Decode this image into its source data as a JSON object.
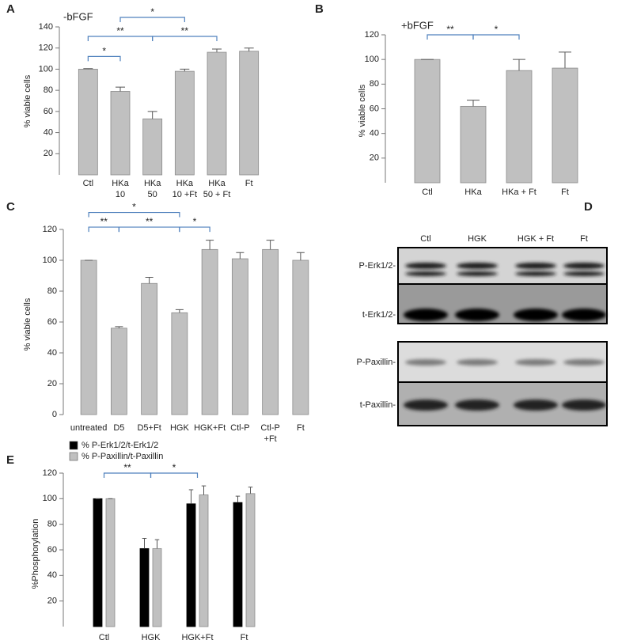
{
  "chart_data": [
    {
      "type": "bar",
      "panel": "A",
      "title": "-bFGF",
      "ylabel": "% viable cells",
      "categories": [
        [
          "Ctl"
        ],
        [
          "HKa",
          "10"
        ],
        [
          "HKa",
          "50"
        ],
        [
          "HKa",
          "10 +Ft"
        ],
        [
          "HKa",
          "50 + Ft"
        ],
        [
          "Ft"
        ]
      ],
      "values": [
        100,
        79,
        53,
        98,
        116,
        117
      ],
      "errors": [
        0.5,
        4,
        7,
        2,
        3,
        3
      ],
      "color": "#c0c0c0",
      "ylim": [
        0,
        140
      ],
      "yticks": [
        20,
        40,
        60,
        80,
        100,
        120,
        140
      ],
      "annotations": [
        "*",
        "**",
        "*",
        "**"
      ]
    },
    {
      "type": "bar",
      "panel": "B",
      "title": "+bFGF",
      "ylabel": "% viable cells",
      "categories": [
        "Ctl",
        "HKa",
        "HKa + Ft",
        "Ft"
      ],
      "values": [
        100,
        62,
        91,
        93
      ],
      "errors": [
        0,
        5,
        9,
        13
      ],
      "color": "#c0c0c0",
      "ylim": [
        0,
        120
      ],
      "yticks": [
        20,
        40,
        60,
        80,
        100,
        120
      ],
      "annotations": [
        "**",
        "*"
      ]
    },
    {
      "type": "bar",
      "panel": "C",
      "ylabel": "% viable cells",
      "categories": [
        [
          "untreated"
        ],
        [
          "D5"
        ],
        [
          "D5+Ft"
        ],
        [
          "HGK"
        ],
        [
          "HGK+Ft"
        ],
        [
          "Ctl-P"
        ],
        [
          "Ctl-P",
          "+Ft"
        ],
        [
          "Ft"
        ]
      ],
      "values": [
        100,
        56,
        85,
        66,
        107,
        101,
        107,
        100
      ],
      "errors": [
        0,
        1,
        4,
        2,
        6,
        4,
        6,
        5
      ],
      "color": "#c0c0c0",
      "ylim": [
        0,
        120
      ],
      "yticks": [
        0,
        20,
        40,
        60,
        80,
        100,
        120
      ],
      "annotations": [
        "*",
        "**",
        "**",
        "*"
      ]
    },
    {
      "type": "bar",
      "panel": "E",
      "ylabel": "%Phosphorylation",
      "categories": [
        "Ctl",
        "HGK",
        "HGK+Ft",
        "Ft"
      ],
      "series": [
        {
          "name": "% P-Erk1/2/t-Erk1/2",
          "color": "#000000",
          "values": [
            100,
            61,
            96,
            97
          ],
          "errors": [
            0,
            8,
            11,
            5
          ]
        },
        {
          "name": "% P-Paxillin/t-Paxillin",
          "color": "#c0c0c0",
          "values": [
            100,
            61,
            103,
            104
          ],
          "errors": [
            0,
            7,
            7,
            5
          ]
        }
      ],
      "ylim": [
        0,
        120
      ],
      "yticks": [
        20,
        40,
        60,
        80,
        100,
        120
      ],
      "annotations": [
        "**",
        "*"
      ]
    }
  ],
  "blot": {
    "panel": "D",
    "lanes": [
      "Ctl",
      "HGK",
      "HGK + Ft",
      "Ft"
    ],
    "rows": [
      "P-Erk1/2-",
      "t-Erk1/2-",
      "P-Paxillin-",
      "t-Paxillin-"
    ]
  }
}
